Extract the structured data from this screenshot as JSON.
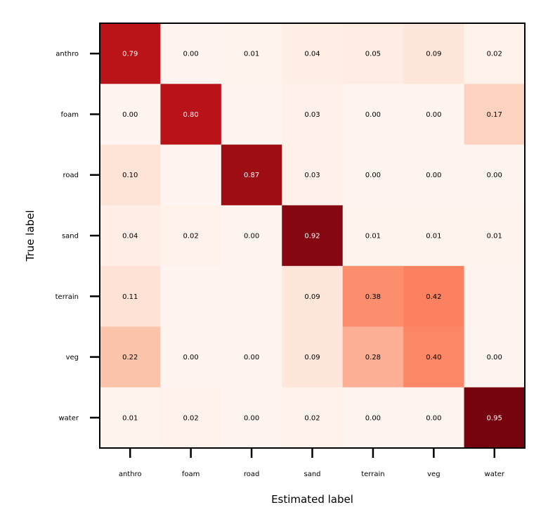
{
  "chart_data": {
    "type": "heatmap",
    "title": "",
    "xlabel": "Estimated label",
    "ylabel": "True label",
    "x_categories": [
      "anthro",
      "foam",
      "road",
      "sand",
      "terrain",
      "veg",
      "water"
    ],
    "y_categories": [
      "anthro",
      "foam",
      "road",
      "sand",
      "terrain",
      "veg",
      "water"
    ],
    "colormap": "Reds",
    "vmin": 0,
    "vmax": 0.95,
    "values": [
      [
        0.79,
        0.0,
        0.01,
        0.04,
        0.05,
        0.09,
        0.02
      ],
      [
        0.0,
        0.8,
        null,
        0.03,
        0.0,
        0.0,
        0.17
      ],
      [
        0.1,
        null,
        0.87,
        0.03,
        0.0,
        0.0,
        0.0
      ],
      [
        0.04,
        0.02,
        0.0,
        0.92,
        0.01,
        0.01,
        0.01
      ],
      [
        0.11,
        null,
        null,
        0.09,
        0.38,
        0.42,
        null
      ],
      [
        0.22,
        0.0,
        0.0,
        0.09,
        0.28,
        0.4,
        0.0
      ],
      [
        0.01,
        0.02,
        0.0,
        0.02,
        0.0,
        0.0,
        0.95
      ]
    ],
    "grid": false,
    "legend": "none"
  }
}
